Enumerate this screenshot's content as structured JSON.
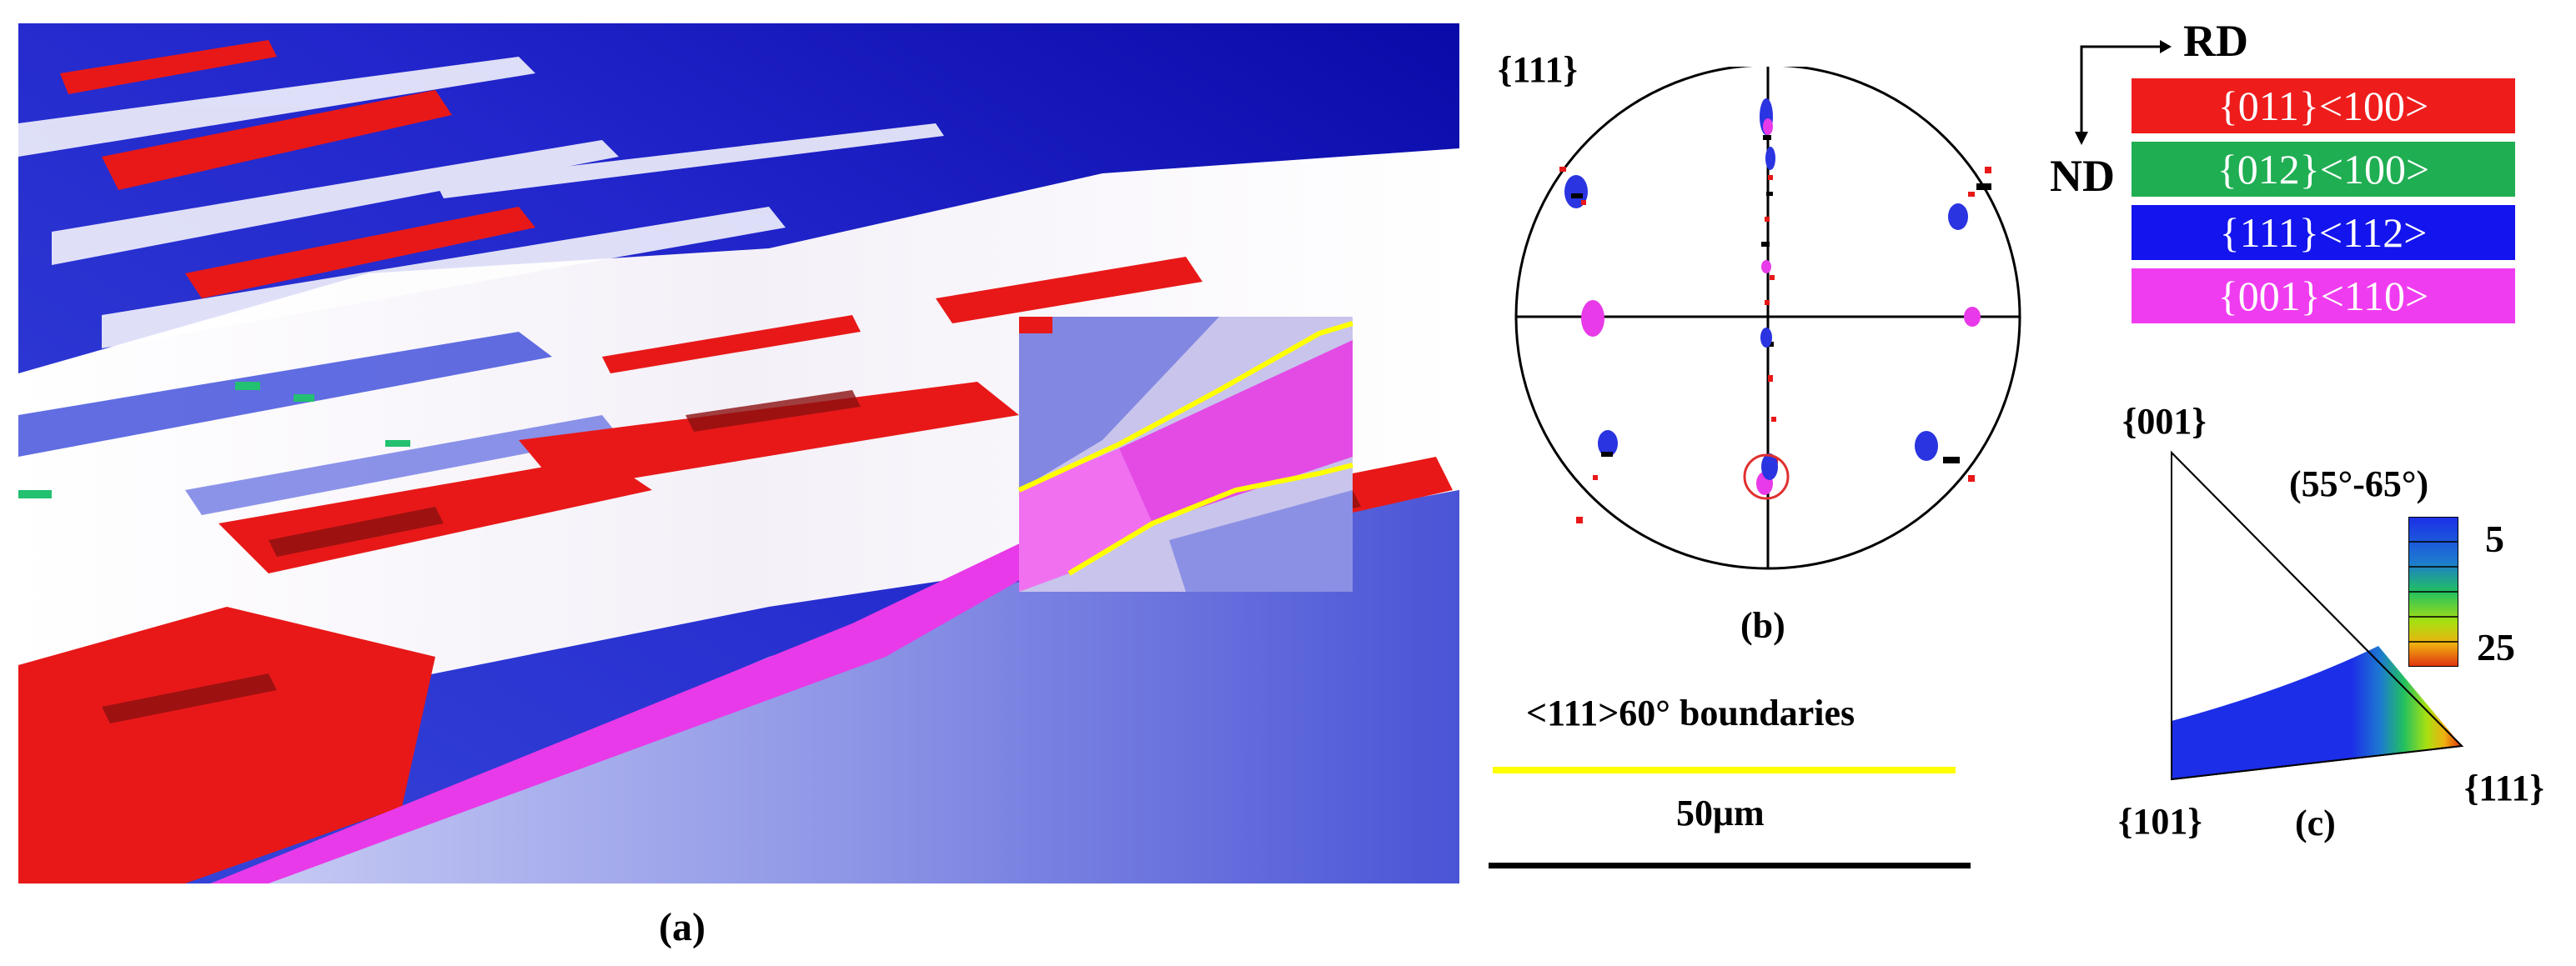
{
  "figure": {
    "panel_a": {
      "label": "(a)"
    },
    "panel_b": {
      "label": "(b)",
      "pole_figure_label": "{111}",
      "boundary_label": "<111>60° boundaries",
      "scale_bar_label": "50μm",
      "colors": {
        "boundary_line": "#ffff00",
        "highlight_circle": "#e03030"
      }
    },
    "legend": {
      "rd_label": "RD",
      "nd_label": "ND",
      "items": [
        {
          "label": "{011}<100>",
          "color": "#ef1c1c"
        },
        {
          "label": "{012}<100>",
          "color": "#1fae52"
        },
        {
          "label": "{111}<112>",
          "color": "#1414ee"
        },
        {
          "label": "{001}<110>",
          "color": "#f03cf0"
        }
      ]
    },
    "panel_c": {
      "label": "(c)",
      "corner_001": "{001}",
      "corner_101": "{101}",
      "corner_111": "{111}",
      "range_label": "(55°-65°)",
      "colorbar_ticks": [
        "5",
        "25"
      ]
    }
  }
}
